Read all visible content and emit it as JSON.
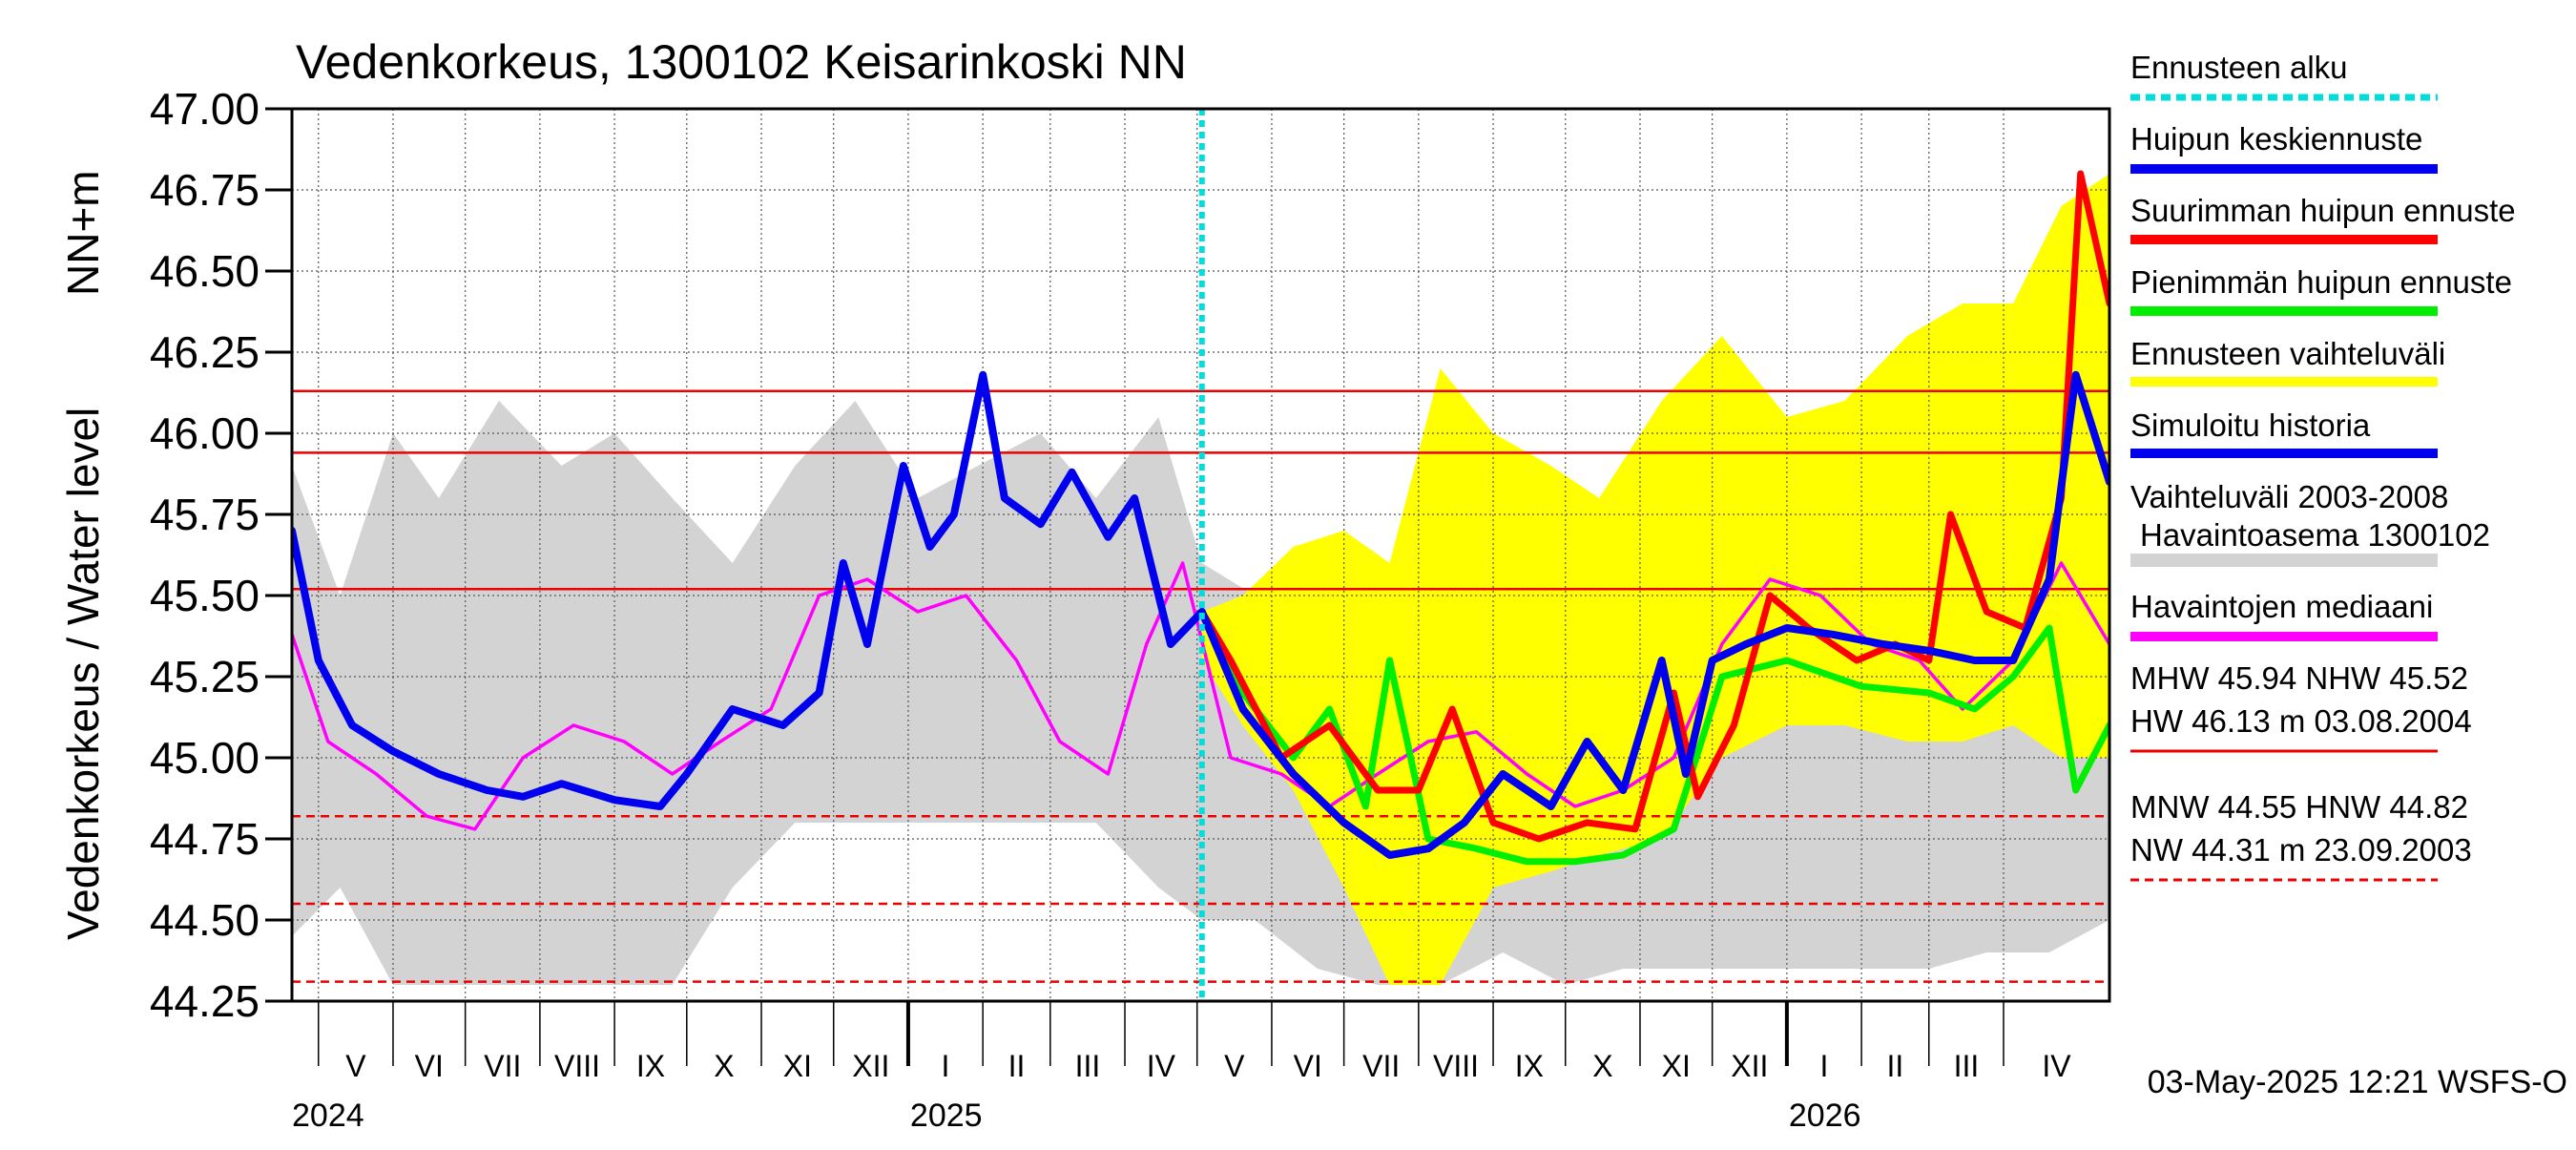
{
  "chart_data": {
    "type": "line",
    "title": "Vedenkorkeus, 1300102 Keisarinkoski NN",
    "ylabel_top": "NN+m",
    "ylabel_bottom": "Vedenkorkeus / Water level",
    "ylim": [
      44.25,
      47.0
    ],
    "yticks": [
      "47.00",
      "46.75",
      "46.50",
      "46.25",
      "46.00",
      "45.75",
      "45.50",
      "45.25",
      "45.00",
      "44.75",
      "44.50",
      "44.25"
    ],
    "xlim": [
      "2024-04-20",
      "2026-05-15"
    ],
    "months": [
      {
        "label": "V",
        "start": "2024-05-01"
      },
      {
        "label": "VI",
        "start": "2024-06-01"
      },
      {
        "label": "VII",
        "start": "2024-07-01"
      },
      {
        "label": "VIII",
        "start": "2024-08-01"
      },
      {
        "label": "IX",
        "start": "2024-09-01"
      },
      {
        "label": "X",
        "start": "2024-10-01"
      },
      {
        "label": "XI",
        "start": "2024-11-01"
      },
      {
        "label": "XII",
        "start": "2024-12-01"
      },
      {
        "label": "I",
        "start": "2025-01-01"
      },
      {
        "label": "II",
        "start": "2025-02-01"
      },
      {
        "label": "III",
        "start": "2025-03-01"
      },
      {
        "label": "IV",
        "start": "2025-04-01"
      },
      {
        "label": "V",
        "start": "2025-05-01"
      },
      {
        "label": "VI",
        "start": "2025-06-01"
      },
      {
        "label": "VII",
        "start": "2025-07-01"
      },
      {
        "label": "VIII",
        "start": "2025-08-01"
      },
      {
        "label": "IX",
        "start": "2025-09-01"
      },
      {
        "label": "X",
        "start": "2025-10-01"
      },
      {
        "label": "XI",
        "start": "2025-11-01"
      },
      {
        "label": "XII",
        "start": "2025-12-01"
      },
      {
        "label": "I",
        "start": "2026-01-01"
      },
      {
        "label": "II",
        "start": "2026-02-01"
      },
      {
        "label": "III",
        "start": "2026-03-01"
      },
      {
        "label": "IV",
        "start": "2026-04-01"
      }
    ],
    "years": [
      {
        "label": "2024",
        "at": "2024-04-20"
      },
      {
        "label": "2025",
        "at": "2025-01-01"
      },
      {
        "label": "2026",
        "at": "2026-01-01"
      }
    ],
    "forecast_start": "2025-05-03",
    "reference_lines": [
      {
        "name": "HW",
        "value": 46.13,
        "style": "solid"
      },
      {
        "name": "MHW",
        "value": 45.94,
        "style": "solid"
      },
      {
        "name": "NHW",
        "value": 45.52,
        "style": "solid"
      },
      {
        "name": "HNW",
        "value": 44.82,
        "style": "dashed"
      },
      {
        "name": "MNW",
        "value": 44.55,
        "style": "dashed"
      },
      {
        "name": "NW",
        "value": 44.31,
        "style": "dashed"
      }
    ],
    "series": [
      {
        "name": "Vaihteluväli 2003-2008 Havaintoasema 1300102",
        "kind": "band",
        "color": "#d3d3d3",
        "x": [
          "2024-04-20",
          "2024-05-10",
          "2024-06-01",
          "2024-06-20",
          "2024-07-15",
          "2024-08-10",
          "2024-09-01",
          "2024-09-25",
          "2024-10-20",
          "2024-11-15",
          "2024-12-10",
          "2025-01-05",
          "2025-01-30",
          "2025-02-25",
          "2025-03-20",
          "2025-04-15",
          "2025-05-03",
          "2025-05-25",
          "2025-06-20",
          "2025-07-15",
          "2025-08-10",
          "2025-09-05",
          "2025-10-01",
          "2025-10-25",
          "2025-11-20",
          "2025-12-15",
          "2026-01-10",
          "2026-02-05",
          "2026-03-01",
          "2026-03-25",
          "2026-04-20",
          "2026-05-15"
        ],
        "high": [
          45.9,
          45.5,
          46.0,
          45.8,
          46.1,
          45.9,
          46.0,
          45.8,
          45.6,
          45.9,
          46.1,
          45.8,
          45.9,
          46.0,
          45.8,
          46.05,
          45.6,
          45.5,
          45.4,
          45.3,
          45.3,
          45.2,
          45.3,
          45.4,
          45.5,
          45.7,
          45.6,
          45.8,
          45.7,
          45.6,
          45.5,
          45.4
        ],
        "low": [
          44.45,
          44.6,
          44.3,
          44.3,
          44.3,
          44.3,
          44.3,
          44.3,
          44.6,
          44.8,
          44.8,
          44.8,
          44.8,
          44.8,
          44.8,
          44.6,
          44.5,
          44.5,
          44.35,
          44.3,
          44.3,
          44.4,
          44.3,
          44.35,
          44.35,
          44.35,
          44.35,
          44.35,
          44.35,
          44.4,
          44.4,
          44.5
        ]
      },
      {
        "name": "Ennusteen vaihteluväli",
        "kind": "band",
        "color": "#ffff00",
        "x": [
          "2025-05-03",
          "2025-05-20",
          "2025-06-10",
          "2025-07-01",
          "2025-07-20",
          "2025-08-10",
          "2025-09-01",
          "2025-09-25",
          "2025-10-15",
          "2025-11-10",
          "2025-12-05",
          "2026-01-01",
          "2026-01-25",
          "2026-02-20",
          "2026-03-15",
          "2026-04-05",
          "2026-04-25",
          "2026-05-15"
        ],
        "high": [
          45.45,
          45.5,
          45.65,
          45.7,
          45.6,
          46.2,
          46.0,
          45.9,
          45.8,
          46.1,
          46.3,
          46.05,
          46.1,
          46.3,
          46.4,
          46.4,
          46.7,
          46.8
        ],
        "low": [
          45.3,
          45.1,
          44.9,
          44.6,
          44.3,
          44.3,
          44.6,
          44.65,
          44.7,
          44.75,
          45.0,
          45.1,
          45.1,
          45.05,
          45.05,
          45.1,
          45.0,
          45.0
        ]
      },
      {
        "name": "Havaintojen mediaani",
        "kind": "line",
        "color": "#ff00ff",
        "x": [
          "2024-04-20",
          "2024-05-05",
          "2024-05-25",
          "2024-06-15",
          "2024-07-05",
          "2024-07-25",
          "2024-08-15",
          "2024-09-05",
          "2024-09-25",
          "2024-10-15",
          "2024-11-05",
          "2024-11-25",
          "2024-12-15",
          "2025-01-05",
          "2025-01-25",
          "2025-02-15",
          "2025-03-05",
          "2025-03-25",
          "2025-04-10",
          "2025-04-25",
          "2025-05-15",
          "2025-06-05",
          "2025-06-25",
          "2025-07-15",
          "2025-08-05",
          "2025-08-25",
          "2025-09-15",
          "2025-10-05",
          "2025-10-25",
          "2025-11-15",
          "2025-12-05",
          "2025-12-25",
          "2026-01-15",
          "2026-02-05",
          "2026-02-25",
          "2026-03-15",
          "2026-04-05",
          "2026-04-25",
          "2026-05-15"
        ],
        "y": [
          45.38,
          45.05,
          44.95,
          44.82,
          44.78,
          45.0,
          45.1,
          45.05,
          44.95,
          45.05,
          45.15,
          45.5,
          45.55,
          45.45,
          45.5,
          45.3,
          45.05,
          44.95,
          45.35,
          45.6,
          45.0,
          44.95,
          44.85,
          44.95,
          45.05,
          45.08,
          44.95,
          44.85,
          44.9,
          45.0,
          45.35,
          45.55,
          45.5,
          45.35,
          45.3,
          45.15,
          45.3,
          45.6,
          45.35
        ]
      },
      {
        "name": "Simuloitu historia",
        "kind": "line",
        "color": "#0000ee",
        "x": [
          "2024-04-20",
          "2024-05-01",
          "2024-05-15",
          "2024-06-01",
          "2024-06-20",
          "2024-07-10",
          "2024-07-25",
          "2024-08-10",
          "2024-09-01",
          "2024-09-20",
          "2024-10-01",
          "2024-10-20",
          "2024-11-10",
          "2024-11-25",
          "2024-12-05",
          "2024-12-15",
          "2024-12-30",
          "2025-01-10",
          "2025-01-20",
          "2025-02-01",
          "2025-02-10",
          "2025-02-25",
          "2025-03-10",
          "2025-03-25",
          "2025-04-05",
          "2025-04-20",
          "2025-05-03"
        ],
        "y": [
          45.7,
          45.3,
          45.1,
          45.02,
          44.95,
          44.9,
          44.88,
          44.92,
          44.87,
          44.85,
          44.95,
          45.15,
          45.1,
          45.2,
          45.6,
          45.35,
          45.9,
          45.65,
          45.75,
          46.18,
          45.8,
          45.72,
          45.88,
          45.68,
          45.8,
          45.35,
          45.45
        ]
      },
      {
        "name": "Huipun keskiennuste",
        "kind": "line",
        "color": "#0000ee",
        "x": [
          "2025-05-03",
          "2025-05-20",
          "2025-06-10",
          "2025-07-01",
          "2025-07-20",
          "2025-08-05",
          "2025-08-20",
          "2025-09-05",
          "2025-09-25",
          "2025-10-10",
          "2025-10-25",
          "2025-11-10",
          "2025-11-20",
          "2025-12-01",
          "2025-12-15",
          "2026-01-01",
          "2026-01-20",
          "2026-02-10",
          "2026-03-01",
          "2026-03-20",
          "2026-04-05",
          "2026-04-20",
          "2026-05-01",
          "2026-05-15"
        ],
        "y": [
          45.45,
          45.15,
          44.95,
          44.8,
          44.7,
          44.72,
          44.8,
          44.95,
          44.85,
          45.05,
          44.9,
          45.3,
          44.95,
          45.3,
          45.35,
          45.4,
          45.38,
          45.35,
          45.33,
          45.3,
          45.3,
          45.55,
          46.18,
          45.85
        ]
      },
      {
        "name": "Suurimman huipun ennuste",
        "kind": "line",
        "color": "#ff0000",
        "x": [
          "2025-05-03",
          "2025-05-15",
          "2025-06-05",
          "2025-06-25",
          "2025-07-15",
          "2025-08-01",
          "2025-08-15",
          "2025-09-01",
          "2025-09-20",
          "2025-10-10",
          "2025-10-30",
          "2025-11-15",
          "2025-11-25",
          "2025-12-10",
          "2025-12-25",
          "2026-01-10",
          "2026-01-30",
          "2026-02-15",
          "2026-03-01",
          "2026-03-10",
          "2026-03-25",
          "2026-04-10",
          "2026-04-25",
          "2026-05-03",
          "2026-05-15"
        ],
        "y": [
          45.45,
          45.3,
          45.0,
          45.1,
          44.9,
          44.9,
          45.15,
          44.8,
          44.75,
          44.8,
          44.78,
          45.2,
          44.88,
          45.1,
          45.5,
          45.4,
          45.3,
          45.35,
          45.3,
          45.75,
          45.45,
          45.4,
          45.8,
          46.8,
          46.4
        ]
      },
      {
        "name": "Pienimmän huipun ennuste",
        "kind": "line",
        "color": "#00ee00",
        "x": [
          "2025-05-03",
          "2025-05-20",
          "2025-06-10",
          "2025-06-25",
          "2025-07-10",
          "2025-07-20",
          "2025-08-05",
          "2025-08-25",
          "2025-09-15",
          "2025-10-05",
          "2025-10-25",
          "2025-11-15",
          "2025-12-05",
          "2026-01-01",
          "2026-02-01",
          "2026-03-01",
          "2026-03-20",
          "2026-04-05",
          "2026-04-20",
          "2026-05-01",
          "2026-05-15"
        ],
        "y": [
          45.45,
          45.2,
          45.0,
          45.15,
          44.85,
          45.3,
          44.75,
          44.72,
          44.68,
          44.68,
          44.7,
          44.78,
          45.25,
          45.3,
          45.22,
          45.2,
          45.15,
          45.25,
          45.4,
          44.9,
          45.1
        ]
      }
    ],
    "legend": [
      {
        "label": "Ennusteen alku",
        "color": "#00dddd",
        "style": "dotted"
      },
      {
        "label": "Huipun keskiennuste",
        "color": "#0000ee",
        "style": "solid"
      },
      {
        "label": "Suurimman huipun ennuste",
        "color": "#ff0000",
        "style": "solid"
      },
      {
        "label": "Pienimmän huipun ennuste",
        "color": "#00ee00",
        "style": "solid"
      },
      {
        "label": "Ennusteen vaihteluväli",
        "color": "#ffff00",
        "style": "solid"
      },
      {
        "label": "Simuloitu historia",
        "color": "#0000ee",
        "style": "solid"
      },
      {
        "label": "Vaihteluväli 2003-2008",
        "label2": "Havaintoasema 1300102",
        "color": "#d3d3d3",
        "style": "solid"
      },
      {
        "label": "Havaintojen mediaani",
        "color": "#ff00ff",
        "style": "solid"
      }
    ],
    "stats": [
      {
        "text": "MHW  45.94 NHW  45.52",
        "line": "none"
      },
      {
        "text": "HW  46.13 m 03.08.2004",
        "line": "solid"
      },
      {
        "text": "MNW  44.55 HNW  44.82",
        "line": "none"
      },
      {
        "text": "NW  44.31 m 23.09.2003",
        "line": "dashed"
      }
    ],
    "footer": "03-May-2025 12:21 WSFS-O"
  }
}
